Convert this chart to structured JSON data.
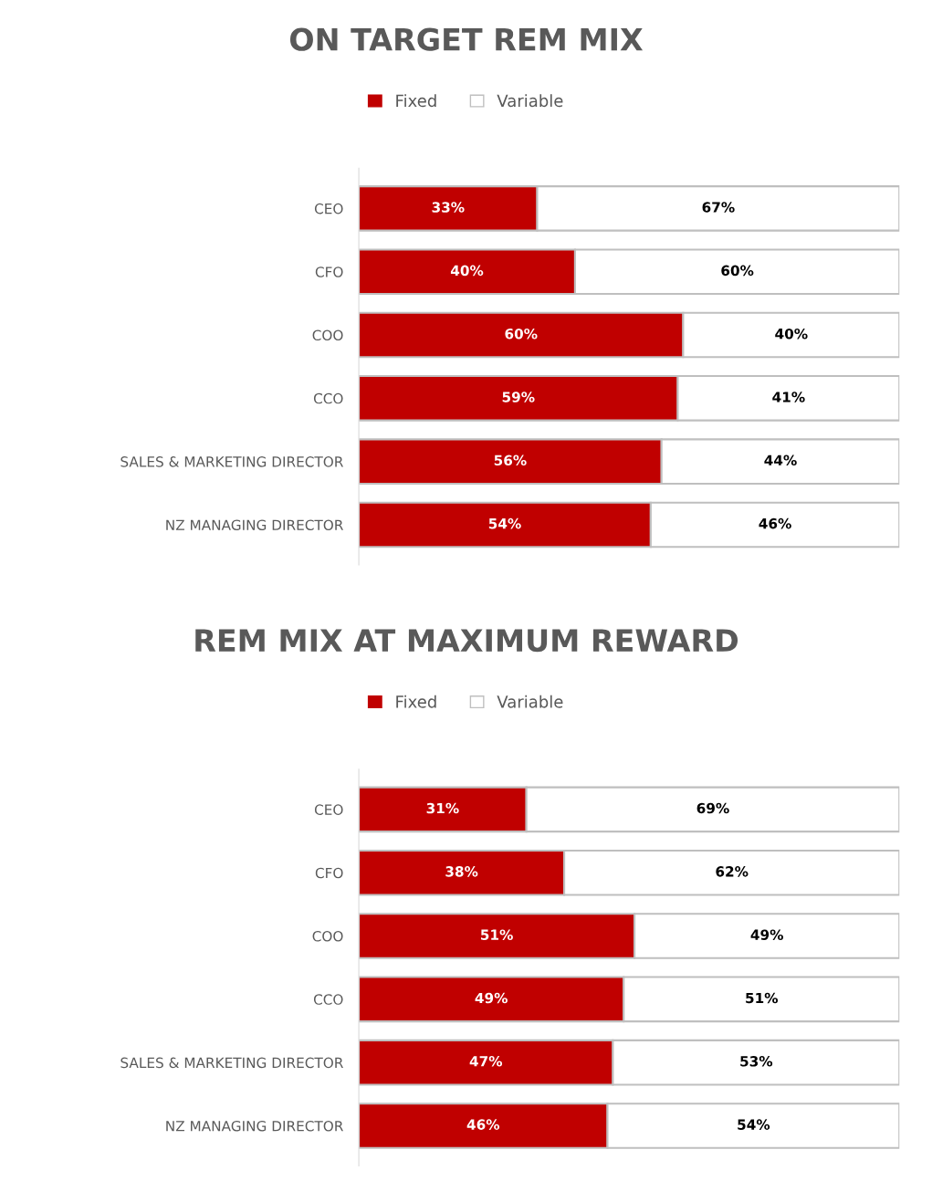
{
  "chart_data": [
    {
      "type": "bar",
      "title": "ON TARGET REM MIX",
      "orientation": "horizontal",
      "stacked": true,
      "legend": "top",
      "grid": false,
      "categories": [
        "CEO",
        "CFO",
        "COO",
        "CCO",
        "SALES & MARKETING DIRECTOR",
        "NZ MANAGING DIRECTOR"
      ],
      "series": [
        {
          "name": "Fixed",
          "color": "#c00000",
          "values": [
            33,
            40,
            60,
            59,
            56,
            54
          ],
          "value_labels": [
            "33%",
            "40%",
            "60%",
            "59%",
            "56%",
            "54%"
          ]
        },
        {
          "name": "Variable",
          "color": "#ffffff",
          "values": [
            67,
            60,
            40,
            41,
            44,
            46
          ],
          "value_labels": [
            "67%",
            "60%",
            "40%",
            "41%",
            "44%",
            "46%"
          ]
        }
      ]
    },
    {
      "type": "bar",
      "title": "REM MIX AT MAXIMUM REWARD",
      "orientation": "horizontal",
      "stacked": true,
      "legend": "top",
      "grid": false,
      "categories": [
        "CEO",
        "CFO",
        "COO",
        "CCO",
        "SALES & MARKETING DIRECTOR",
        "NZ MANAGING DIRECTOR"
      ],
      "series": [
        {
          "name": "Fixed",
          "color": "#c00000",
          "values": [
            31,
            38,
            51,
            49,
            47,
            46
          ],
          "value_labels": [
            "31%",
            "38%",
            "51%",
            "49%",
            "47%",
            "46%"
          ]
        },
        {
          "name": "Variable",
          "color": "#ffffff",
          "values": [
            69,
            62,
            49,
            51,
            53,
            54
          ],
          "value_labels": [
            "69%",
            "62%",
            "49%",
            "51%",
            "53%",
            "54%"
          ]
        }
      ]
    }
  ]
}
